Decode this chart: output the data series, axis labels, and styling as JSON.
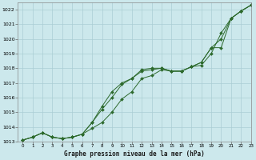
{
  "title": "Graphe pression niveau de la mer (hPa)",
  "background_color": "#cce8ec",
  "grid_color": "#aacdd4",
  "line_color": "#2d6a2d",
  "marker_color": "#2d6a2d",
  "xlim": [
    -0.5,
    23
  ],
  "ylim": [
    1013,
    1022.5
  ],
  "yticks": [
    1013,
    1014,
    1015,
    1016,
    1017,
    1018,
    1019,
    1020,
    1021,
    1022
  ],
  "xticks": [
    0,
    1,
    2,
    3,
    4,
    5,
    6,
    7,
    8,
    9,
    10,
    11,
    12,
    13,
    14,
    15,
    16,
    17,
    18,
    19,
    20,
    21,
    22,
    23
  ],
  "series": [
    [
      1013.1,
      1013.3,
      1013.6,
      1013.3,
      1013.2,
      1013.3,
      1013.5,
      1013.9,
      1014.3,
      1015.0,
      1015.9,
      1016.4,
      1017.3,
      1017.5,
      1017.9,
      1017.8,
      1017.8,
      1018.1,
      1018.2,
      1019.0,
      1020.4,
      1021.4,
      1021.9,
      1022.3
    ],
    [
      1013.1,
      1013.3,
      1013.6,
      1013.3,
      1013.2,
      1013.3,
      1013.5,
      1014.3,
      1015.2,
      1016.0,
      1016.9,
      1017.3,
      1017.8,
      1017.9,
      1018.0,
      1017.8,
      1017.8,
      1018.1,
      1018.4,
      1019.4,
      1020.0,
      1021.4,
      1021.9,
      1022.3
    ],
    [
      1013.1,
      1013.3,
      1013.6,
      1013.3,
      1013.2,
      1013.3,
      1013.5,
      1014.3,
      1015.4,
      1016.4,
      1017.0,
      1017.3,
      1017.9,
      1018.0,
      1018.0,
      1017.8,
      1017.8,
      1018.1,
      1018.4,
      1019.4,
      1019.4,
      1021.4,
      1021.9,
      1022.3
    ]
  ],
  "figsize": [
    3.2,
    2.0
  ],
  "dpi": 100
}
